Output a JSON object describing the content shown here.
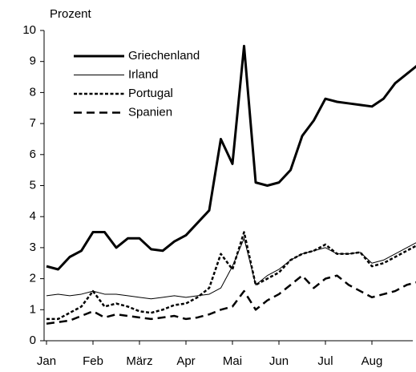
{
  "chart_data": {
    "type": "line",
    "y_label": "Prozent",
    "categories": [
      "Jan",
      null,
      null,
      null,
      "Feb",
      null,
      null,
      null,
      "März",
      null,
      null,
      null,
      "Apr",
      null,
      null,
      null,
      "Mai",
      null,
      null,
      null,
      "Jun",
      null,
      null,
      null,
      "Jul",
      null,
      null,
      null,
      "Aug",
      null,
      null,
      null,
      null
    ],
    "series": [
      {
        "name": "Griechenland",
        "color": "#000000",
        "linestyle": "thick",
        "values": [
          2.4,
          2.3,
          2.7,
          2.9,
          3.5,
          3.5,
          3.0,
          3.3,
          3.3,
          2.95,
          2.9,
          3.2,
          3.4,
          3.8,
          4.2,
          6.5,
          5.7,
          9.5,
          5.1,
          5.0,
          5.1,
          5.5,
          6.6,
          7.1,
          7.8,
          7.7,
          7.65,
          7.6,
          7.55,
          7.8,
          8.3,
          8.6,
          8.9
        ]
      },
      {
        "name": "Irland",
        "color": "#000000",
        "linestyle": "solid",
        "values": [
          1.45,
          1.5,
          1.45,
          1.5,
          1.6,
          1.5,
          1.5,
          1.45,
          1.4,
          1.35,
          1.4,
          1.45,
          1.4,
          1.45,
          1.5,
          1.7,
          2.4,
          3.3,
          1.8,
          2.1,
          2.3,
          2.6,
          2.8,
          2.9,
          3.0,
          2.8,
          2.8,
          2.85,
          2.5,
          2.6,
          2.8,
          3.0,
          3.2
        ]
      },
      {
        "name": "Portugal",
        "color": "#000000",
        "linestyle": "dotted",
        "values": [
          0.7,
          0.7,
          0.9,
          1.1,
          1.6,
          1.1,
          1.2,
          1.1,
          0.95,
          0.9,
          1.0,
          1.15,
          1.2,
          1.4,
          1.7,
          2.8,
          2.3,
          3.5,
          1.8,
          2.0,
          2.2,
          2.6,
          2.8,
          2.9,
          3.1,
          2.8,
          2.8,
          2.85,
          2.4,
          2.5,
          2.7,
          2.9,
          3.1
        ]
      },
      {
        "name": "Spanien",
        "color": "#000000",
        "linestyle": "dashed",
        "values": [
          0.55,
          0.6,
          0.65,
          0.8,
          0.95,
          0.75,
          0.85,
          0.8,
          0.75,
          0.7,
          0.75,
          0.8,
          0.7,
          0.75,
          0.85,
          1.0,
          1.1,
          1.6,
          1.0,
          1.3,
          1.5,
          1.8,
          2.1,
          1.7,
          2.0,
          2.1,
          1.8,
          1.6,
          1.4,
          1.5,
          1.6,
          1.8,
          1.9
        ]
      }
    ],
    "ylim": [
      0,
      10
    ],
    "yticks": [
      0,
      1,
      2,
      3,
      4,
      5,
      6,
      7,
      8,
      9,
      10
    ],
    "grid": false,
    "legend": "upper left"
  }
}
